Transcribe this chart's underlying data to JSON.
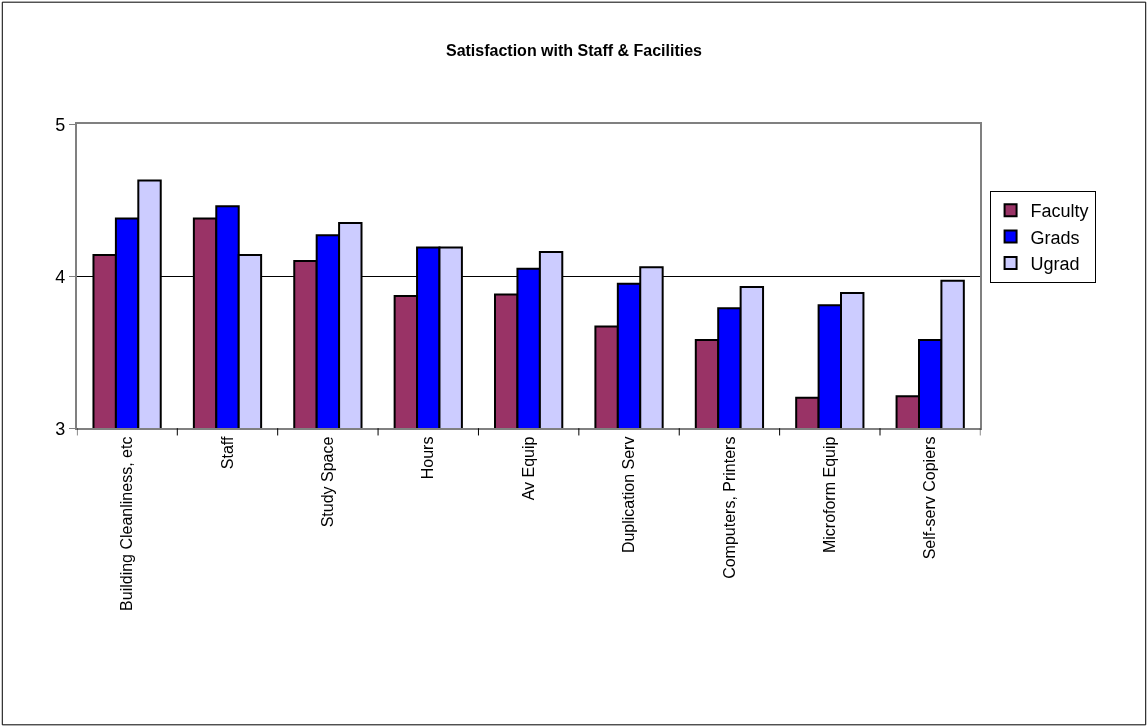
{
  "chart_data": {
    "type": "bar",
    "title": "Satisfaction with Staff & Facilities",
    "categories": [
      "Building Cleanliness, etc",
      "Staff",
      "Study Space",
      "Hours",
      "Av Equip",
      "Duplication Serv",
      "Computers, Printers",
      "Microform Equip",
      "Self-serv Copiers"
    ],
    "series": [
      {
        "name": "Faculty",
        "color": "#993366",
        "values": [
          4.14,
          4.38,
          4.1,
          3.87,
          3.88,
          3.67,
          3.58,
          3.2,
          3.21
        ]
      },
      {
        "name": "Grads",
        "color": "#0000ff",
        "values": [
          4.38,
          4.46,
          4.27,
          4.19,
          4.05,
          3.95,
          3.79,
          3.81,
          3.58
        ]
      },
      {
        "name": "Ugrad",
        "color": "#ccccff",
        "values": [
          4.63,
          4.14,
          4.35,
          4.19,
          4.16,
          4.06,
          3.93,
          3.89,
          3.97
        ]
      }
    ],
    "ylim": [
      3,
      5
    ],
    "yticks": [
      3,
      4,
      5
    ],
    "grid": "y",
    "legend": "right"
  }
}
